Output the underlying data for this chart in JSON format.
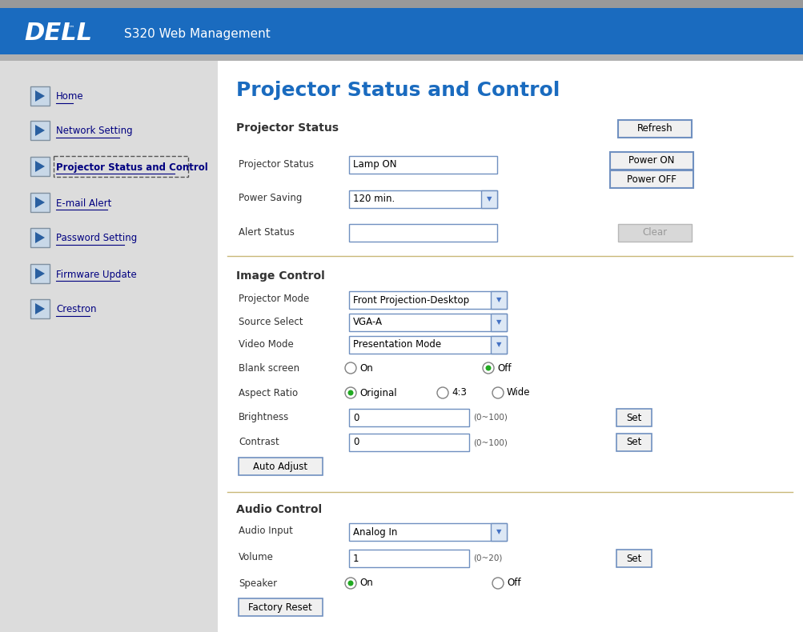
{
  "header_bg": "#1a6bbf",
  "header_text": "S320 Web Management",
  "header_logo": "DELL",
  "page_bg": "#e8e8e8",
  "content_bg": "#ffffff",
  "sidebar_bg": "#dcdcdc",
  "title": "Projector Status and Control",
  "title_color": "#1a6bbf",
  "nav_items": [
    "Home",
    "Network Setting",
    "Projector Status and Control",
    "E-mail Alert",
    "Password Setting",
    "Firmware Update",
    "Crestron"
  ],
  "nav_active": 2,
  "section1_title": "Projector Status",
  "fields_status": [
    {
      "label": "Projector Status",
      "value": "Lamp ON",
      "type": "text"
    },
    {
      "label": "Power Saving",
      "value": "120 min.",
      "type": "dropdown"
    },
    {
      "label": "Alert Status",
      "value": "",
      "type": "text"
    }
  ],
  "buttons_right_top": [
    "Refresh"
  ],
  "buttons_right_power": [
    "Power ON",
    "Power OFF"
  ],
  "button_clear": "Clear",
  "section2_title": "Image Control",
  "fields_image": [
    {
      "label": "Projector Mode",
      "value": "Front Projection-Desktop",
      "type": "dropdown"
    },
    {
      "label": "Source Select",
      "value": "VGA-A",
      "type": "dropdown"
    },
    {
      "label": "Video Mode",
      "value": "Presentation Mode",
      "type": "dropdown"
    },
    {
      "label": "Blank screen",
      "value": "",
      "type": "radio_onoff"
    },
    {
      "label": "Aspect Ratio",
      "value": "",
      "type": "radio_aspect"
    },
    {
      "label": "Brightness",
      "value": "0",
      "type": "text_set",
      "range": "(0~100)"
    },
    {
      "label": "Contrast",
      "value": "0",
      "type": "text_set",
      "range": "(0~100)"
    }
  ],
  "button_auto_adjust": "Auto Adjust",
  "section3_title": "Audio Control",
  "fields_audio": [
    {
      "label": "Audio Input",
      "value": "Analog In",
      "type": "dropdown"
    },
    {
      "label": "Volume",
      "value": "1",
      "type": "text_set",
      "range": "(0~20)"
    },
    {
      "label": "Speaker",
      "value": "",
      "type": "radio_speaker"
    }
  ],
  "button_factory_reset": "Factory Reset",
  "label_color": "#333333",
  "button_border": "#7090c0",
  "button_bg": "#f0f0f0",
  "input_border": "#7090c0",
  "input_bg": "#ffffff",
  "dropdown_arrow_color": "#4472c4",
  "radio_selected_color": "#22aa22",
  "separator_color": "#c8b878",
  "top_bar_color": "#999999",
  "nav_y_positions": [
    120,
    163,
    208,
    253,
    297,
    342,
    386
  ]
}
